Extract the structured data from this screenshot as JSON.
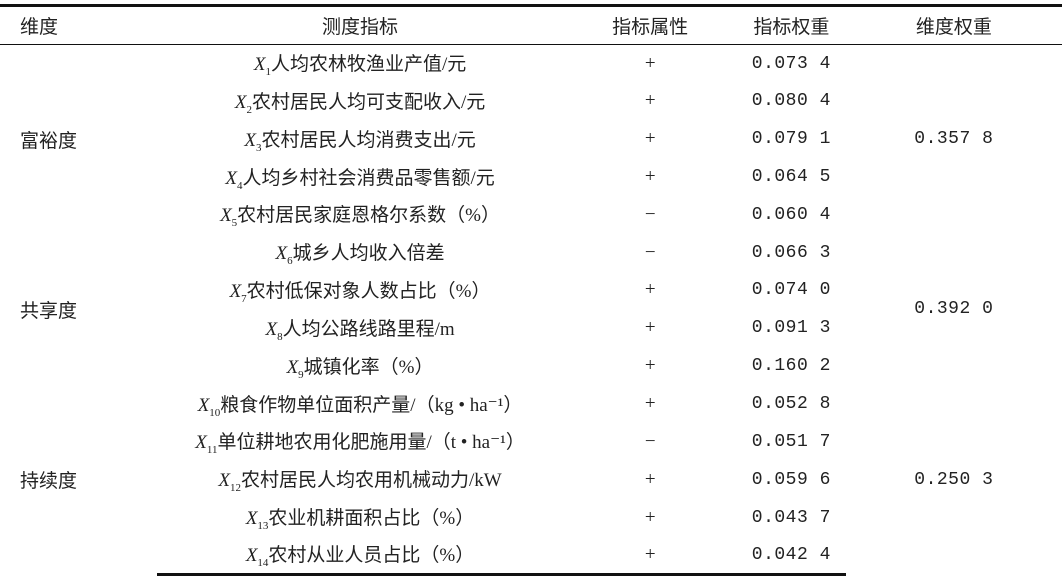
{
  "header": {
    "dimension": "维度",
    "indicator": "测度指标",
    "attribute": "指标属性",
    "weight": "指标权重",
    "dimension_weight": "维度权重"
  },
  "groups": [
    {
      "dimension": "富裕度",
      "dimension_weight": "0.357 8"
    },
    {
      "dimension": "共享度",
      "dimension_weight": "0.392 0"
    },
    {
      "dimension": "持续度",
      "dimension_weight": "0.250 3"
    }
  ],
  "rows": [
    {
      "var": "X",
      "sub": "1",
      "name": "人均农林牧渔业产值/元",
      "attr": "+",
      "weight": "0.073 4"
    },
    {
      "var": "X",
      "sub": "2",
      "name": "农村居民人均可支配收入/元",
      "attr": "+",
      "weight": "0.080 4"
    },
    {
      "var": "X",
      "sub": "3",
      "name": "农村居民人均消费支出/元",
      "attr": "+",
      "weight": "0.079 1"
    },
    {
      "var": "X",
      "sub": "4",
      "name": "人均乡村社会消费品零售额/元",
      "attr": "+",
      "weight": "0.064 5"
    },
    {
      "var": "X",
      "sub": "5",
      "name": "农村居民家庭恩格尔系数（%）",
      "attr": "−",
      "weight": "0.060 4"
    },
    {
      "var": "X",
      "sub": "6",
      "name": "城乡人均收入倍差",
      "attr": "−",
      "weight": "0.066 3"
    },
    {
      "var": "X",
      "sub": "7",
      "name": "农村低保对象人数占比（%）",
      "attr": "+",
      "weight": "0.074 0"
    },
    {
      "var": "X",
      "sub": "8",
      "name": "人均公路线路里程/m",
      "attr": "+",
      "weight": "0.091 3"
    },
    {
      "var": "X",
      "sub": "9",
      "name": "城镇化率（%）",
      "attr": "+",
      "weight": "0.160 2"
    },
    {
      "var": "X",
      "sub": "10",
      "name": "粮食作物单位面积产量/（kg • ha⁻¹）",
      "attr": "+",
      "weight": "0.052 8"
    },
    {
      "var": "X",
      "sub": "11",
      "name": "单位耕地农用化肥施用量/（t • ha⁻¹）",
      "attr": "−",
      "weight": "0.051 7"
    },
    {
      "var": "X",
      "sub": "12",
      "name": "农村居民人均农用机械动力/kW",
      "attr": "+",
      "weight": "0.059 6"
    },
    {
      "var": "X",
      "sub": "13",
      "name": "农业机耕面积占比（%）",
      "attr": "+",
      "weight": "0.043 7"
    },
    {
      "var": "X",
      "sub": "14",
      "name": "农村从业人员占比（%）",
      "attr": "+",
      "weight": "0.042 4"
    }
  ]
}
